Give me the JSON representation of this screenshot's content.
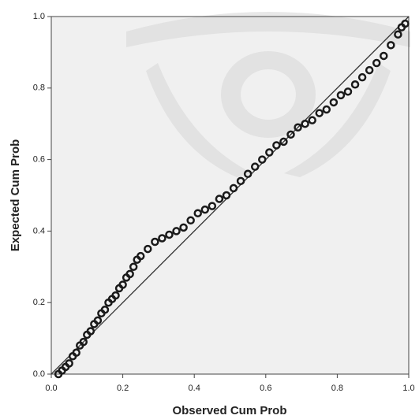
{
  "chart_data": {
    "type": "scatter",
    "x_label": "Observed Cum Prob",
    "y_label": "Expected Cum Prob",
    "x": [
      0.02,
      0.03,
      0.04,
      0.05,
      0.06,
      0.07,
      0.08,
      0.09,
      0.1,
      0.11,
      0.12,
      0.13,
      0.14,
      0.15,
      0.16,
      0.17,
      0.18,
      0.19,
      0.2,
      0.21,
      0.22,
      0.23,
      0.24,
      0.25,
      0.27,
      0.29,
      0.31,
      0.33,
      0.35,
      0.37,
      0.39,
      0.41,
      0.43,
      0.45,
      0.47,
      0.49,
      0.51,
      0.53,
      0.55,
      0.57,
      0.59,
      0.61,
      0.63,
      0.65,
      0.67,
      0.69,
      0.71,
      0.73,
      0.75,
      0.77,
      0.79,
      0.81,
      0.83,
      0.85,
      0.87,
      0.89,
      0.91,
      0.93,
      0.95,
      0.97,
      0.98,
      0.99
    ],
    "values": [
      0.0,
      0.01,
      0.02,
      0.03,
      0.05,
      0.06,
      0.08,
      0.09,
      0.11,
      0.12,
      0.14,
      0.15,
      0.17,
      0.18,
      0.2,
      0.21,
      0.22,
      0.24,
      0.25,
      0.27,
      0.28,
      0.3,
      0.32,
      0.33,
      0.35,
      0.37,
      0.38,
      0.39,
      0.4,
      0.41,
      0.43,
      0.45,
      0.46,
      0.47,
      0.49,
      0.5,
      0.52,
      0.54,
      0.56,
      0.58,
      0.6,
      0.62,
      0.64,
      0.65,
      0.67,
      0.69,
      0.7,
      0.71,
      0.73,
      0.74,
      0.76,
      0.78,
      0.79,
      0.81,
      0.83,
      0.85,
      0.87,
      0.89,
      0.92,
      0.95,
      0.97,
      0.98
    ],
    "color": "#1a1a1a",
    "diagonal": true,
    "xlim": [
      0,
      1
    ],
    "ylim": [
      0,
      1
    ],
    "xticks": [
      {
        "value": 0,
        "label": "0.0"
      },
      {
        "value": 0.2,
        "label": "0.2"
      },
      {
        "value": 0.4,
        "label": "0.4"
      },
      {
        "value": 0.6,
        "label": "0.6"
      },
      {
        "value": 0.8,
        "label": "0.8"
      },
      {
        "value": 1,
        "label": "1.0"
      }
    ],
    "yticks": [
      {
        "value": 0,
        "label": "0.0"
      },
      {
        "value": 0.2,
        "label": "0.2"
      },
      {
        "value": 0.4,
        "label": "0.4"
      },
      {
        "value": 0.6,
        "label": "0.6"
      },
      {
        "value": 0.8,
        "label": "0.8"
      },
      {
        "value": 1,
        "label": "1.0"
      }
    ]
  }
}
